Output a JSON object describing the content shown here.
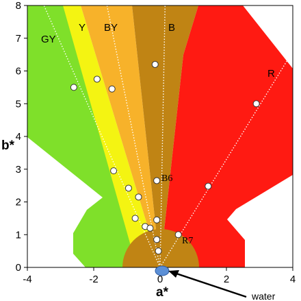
{
  "chart_data": {
    "type": "scatter",
    "xlabel": "a*",
    "ylabel": "b*",
    "xlim": [
      -4,
      4
    ],
    "ylim": [
      0,
      8
    ],
    "xticks": [
      "-4",
      "-2",
      "0",
      "2",
      "4"
    ],
    "yticks": [
      "0",
      "1",
      "2",
      "3",
      "4",
      "5",
      "6",
      "7",
      "8"
    ],
    "regions": [
      {
        "name": "GY",
        "color": "#7fe02a"
      },
      {
        "name": "Y",
        "color": "#f4f412"
      },
      {
        "name": "BY",
        "color": "#f7b22a"
      },
      {
        "name": "B",
        "color": "#c08414"
      },
      {
        "name": "R",
        "color": "#ff1a12"
      }
    ],
    "points": [
      {
        "x": -2.6,
        "y": 5.5
      },
      {
        "x": -1.9,
        "y": 5.75
      },
      {
        "x": -1.45,
        "y": 5.45
      },
      {
        "x": -0.15,
        "y": 6.2
      },
      {
        "x": 2.9,
        "y": 5.0
      },
      {
        "x": -1.4,
        "y": 2.95
      },
      {
        "x": -0.95,
        "y": 2.42
      },
      {
        "x": -0.65,
        "y": 2.15
      },
      {
        "x": -0.75,
        "y": 1.5
      },
      {
        "x": -0.45,
        "y": 1.25
      },
      {
        "x": -0.3,
        "y": 1.2
      },
      {
        "x": -0.1,
        "y": 1.45
      },
      {
        "x": -0.1,
        "y": 2.65
      },
      {
        "x": 1.45,
        "y": 2.48
      },
      {
        "x": 0.55,
        "y": 1.0
      },
      {
        "x": -0.1,
        "y": 0.85
      },
      {
        "x": -0.05,
        "y": 0.5
      }
    ],
    "point_labels": [
      {
        "text": "B6",
        "x": 0.0,
        "y": 2.7
      },
      {
        "text": "R7",
        "x": 0.65,
        "y": 0.92
      }
    ],
    "guide_lines": [
      {
        "from": [
          0,
          0
        ],
        "to": [
          -3.5,
          8
        ]
      },
      {
        "from": [
          0,
          0
        ],
        "to": [
          -1.6,
          8
        ]
      },
      {
        "from": [
          0,
          0
        ],
        "to": [
          0.15,
          8
        ]
      },
      {
        "from": [
          0,
          0
        ],
        "to": [
          4.0,
          6.6
        ]
      }
    ],
    "marker": {
      "label": "water",
      "x": 0,
      "y": 0
    },
    "legend": "none",
    "grid": false
  }
}
